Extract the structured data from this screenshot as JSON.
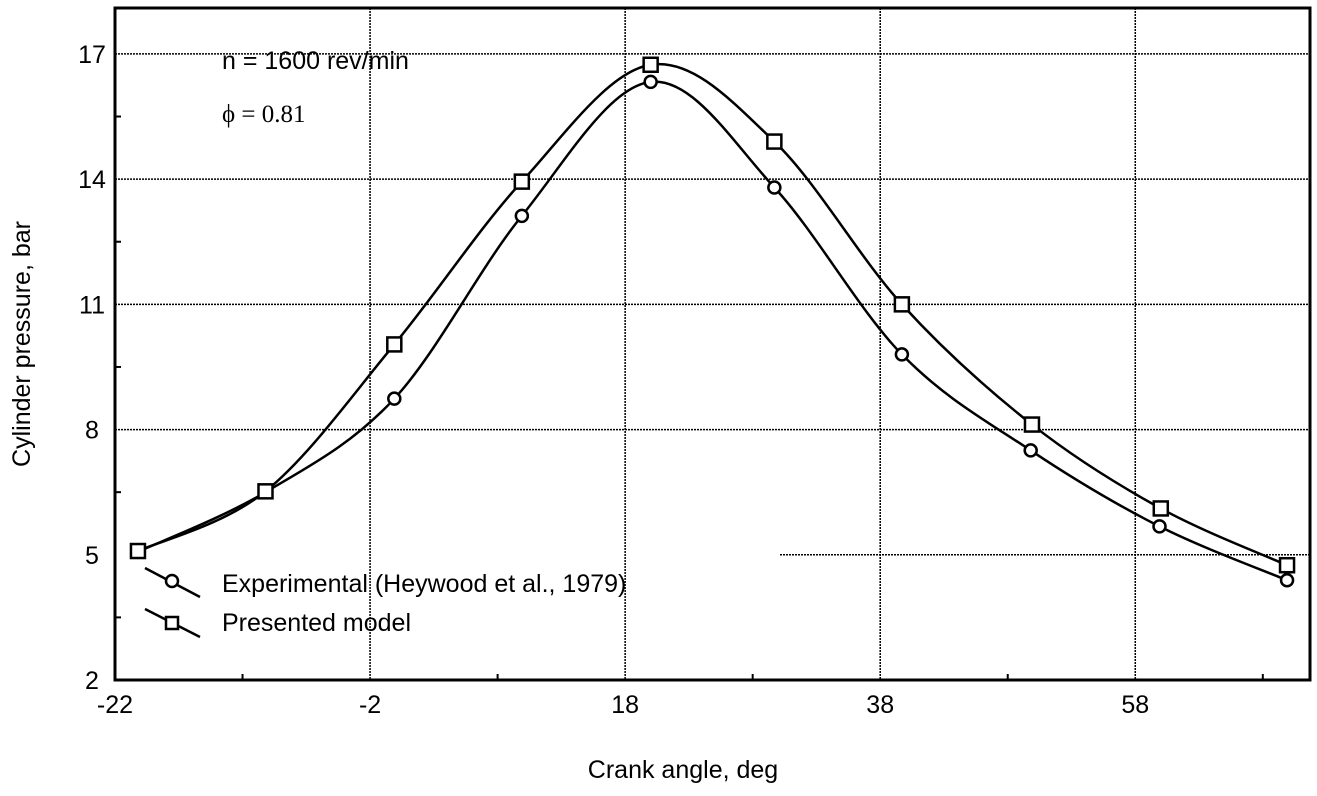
{
  "chart_data": {
    "type": "line",
    "title": "",
    "xlabel": "Crank angle, deg",
    "ylabel": "Cylinder pressure, bar",
    "xlim": [
      -22,
      71.7
    ],
    "ylim": [
      2,
      18.1
    ],
    "xticks": [
      -22,
      -2,
      18,
      38,
      58
    ],
    "yticks": [
      2,
      5,
      8,
      11,
      14,
      17
    ],
    "grid": true,
    "legend_position": "bottom-left",
    "annotations": [
      "n = 1600 rev/min",
      "ϕ = 0.81"
    ],
    "series": [
      {
        "name": "Experimental (Heywood et al., 1979)",
        "marker": "circle",
        "x": [
          -20.2,
          -10.2,
          -0.1,
          9.9,
          20.0,
          29.7,
          39.7,
          49.8,
          59.9,
          69.9
        ],
        "y": [
          5.07,
          6.5,
          8.74,
          13.12,
          16.33,
          13.8,
          9.8,
          7.5,
          5.68,
          4.39
        ]
      },
      {
        "name": "Presented model",
        "marker": "square",
        "x": [
          -20.2,
          -10.2,
          -0.1,
          9.9,
          20.0,
          29.7,
          39.7,
          49.9,
          60.0,
          69.9
        ],
        "y": [
          5.09,
          6.52,
          10.04,
          13.94,
          16.74,
          14.9,
          11.0,
          8.12,
          6.11,
          4.75
        ]
      }
    ]
  }
}
